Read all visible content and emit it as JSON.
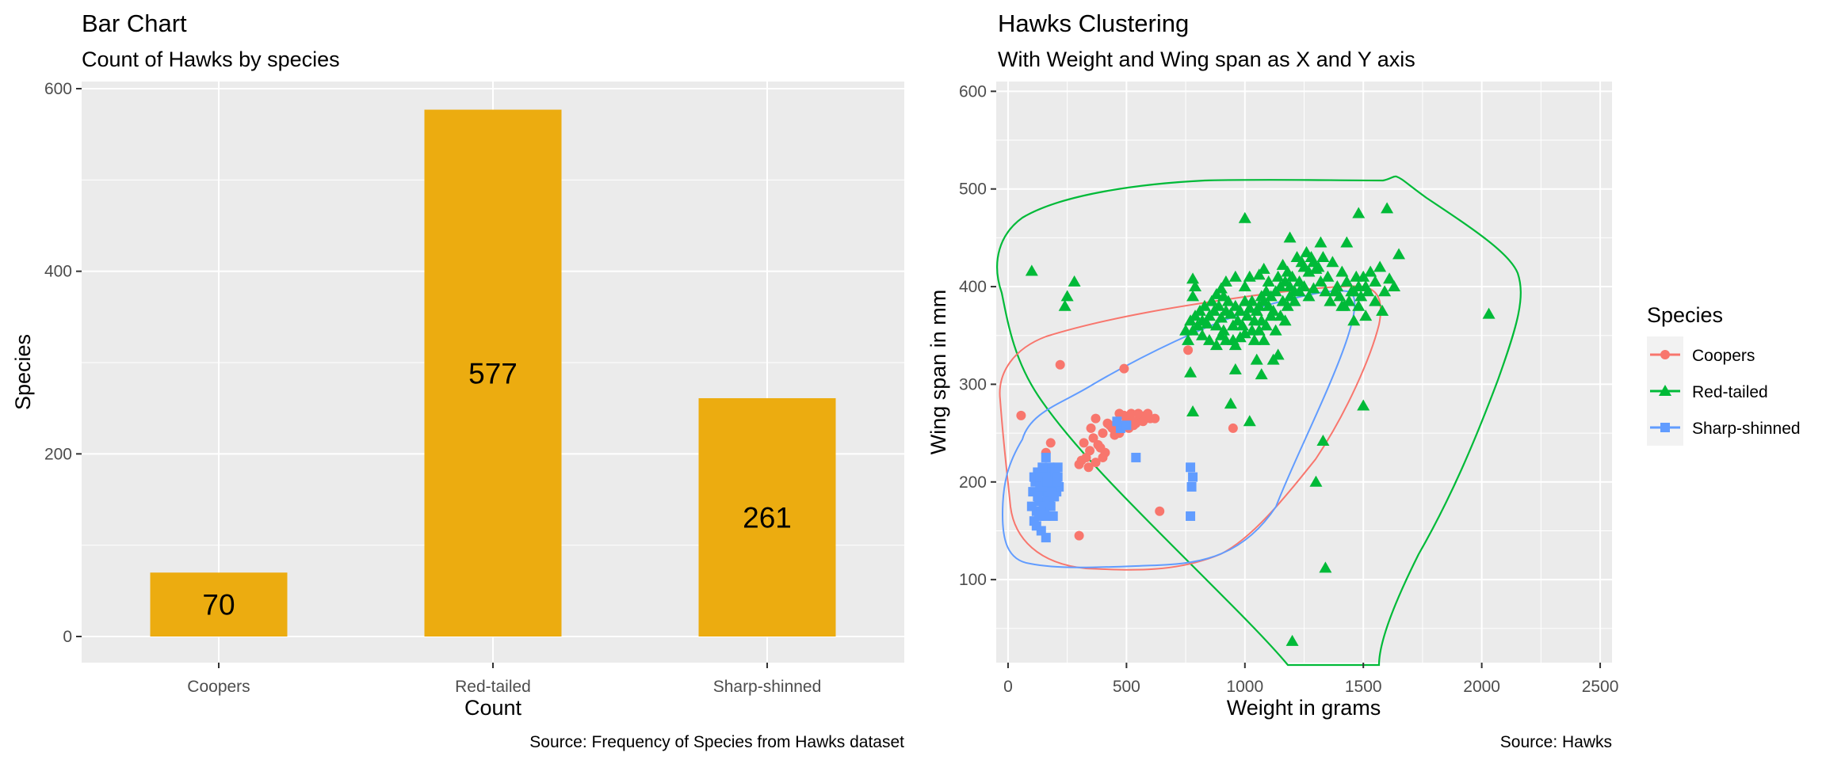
{
  "chart_data": [
    {
      "type": "bar",
      "title": "Bar Chart",
      "subtitle": "Count of Hawks by species",
      "xlabel": "Count",
      "ylabel": "Species",
      "caption": "Source: Frequency of Species from Hawks dataset",
      "categories": [
        "Coopers",
        "Red-tailed",
        "Sharp-shinned"
      ],
      "values": [
        70,
        577,
        261
      ],
      "data_labels": [
        "70",
        "577",
        "261"
      ],
      "ylim": [
        0,
        600
      ],
      "yticks": [
        0,
        200,
        400,
        600
      ],
      "grid": true,
      "bar_color": "#ECAC10",
      "panel_color": "#EBEBEB"
    },
    {
      "type": "scatter",
      "title": "Hawks Clustering",
      "subtitle": "With Weight and Wing span as X and Y axis",
      "xlabel": "Weight in grams",
      "ylabel": "Wing span in mm",
      "caption": "Source: Hawks",
      "xlim": [
        -50,
        2550
      ],
      "ylim": [
        15,
        610
      ],
      "xticks": [
        0,
        500,
        1000,
        1500,
        2000,
        2500
      ],
      "yticks": [
        100,
        200,
        300,
        400,
        500,
        600
      ],
      "grid": true,
      "panel_color": "#EBEBEB",
      "legend": {
        "title": "Species",
        "position": "right"
      },
      "series": [
        {
          "name": "Coopers",
          "color": "#F8766D",
          "marker": "circle",
          "points": [
            [
              55,
              268
            ],
            [
              220,
              320
            ],
            [
              490,
              316
            ],
            [
              760,
              335
            ],
            [
              160,
              230
            ],
            [
              300,
              145
            ],
            [
              640,
              170
            ],
            [
              950,
              255
            ],
            [
              180,
              240
            ],
            [
              330,
              225
            ],
            [
              345,
              232
            ],
            [
              360,
              245
            ],
            [
              380,
              238
            ],
            [
              400,
              250
            ],
            [
              420,
              260
            ],
            [
              440,
              255
            ],
            [
              460,
              262
            ],
            [
              480,
              258
            ],
            [
              500,
              265
            ],
            [
              520,
              270
            ],
            [
              540,
              260
            ],
            [
              560,
              265
            ],
            [
              580,
              268
            ],
            [
              600,
              265
            ],
            [
              350,
              255
            ],
            [
              370,
              265
            ],
            [
              390,
              235
            ],
            [
              410,
              230
            ],
            [
              320,
              240
            ],
            [
              310,
              222
            ],
            [
              300,
              218
            ],
            [
              340,
              215
            ],
            [
              370,
              220
            ],
            [
              400,
              225
            ],
            [
              430,
              258
            ],
            [
              450,
              248
            ],
            [
              470,
              250
            ],
            [
              510,
              255
            ],
            [
              530,
              262
            ],
            [
              550,
              270
            ],
            [
              470,
              270
            ],
            [
              490,
              268
            ],
            [
              510,
              260
            ],
            [
              530,
              258
            ],
            [
              570,
              262
            ],
            [
              590,
              270
            ],
            [
              620,
              265
            ]
          ]
        },
        {
          "name": "Red-tailed",
          "color": "#00BA38",
          "marker": "triangle",
          "points": [
            [
              100,
              416
            ],
            [
              240,
              380
            ],
            [
              250,
              390
            ],
            [
              280,
              405
            ],
            [
              1000,
              470
            ],
            [
              1200,
              37
            ],
            [
              1340,
              112
            ],
            [
              1300,
              200
            ],
            [
              1330,
              242
            ],
            [
              1500,
              278
            ],
            [
              2030,
              372
            ],
            [
              1600,
              480
            ],
            [
              1650,
              433
            ],
            [
              1480,
              475
            ],
            [
              1190,
              450
            ],
            [
              1320,
              445
            ],
            [
              1430,
              445
            ],
            [
              960,
              315
            ],
            [
              1050,
              325
            ],
            [
              770,
              312
            ],
            [
              780,
              272
            ],
            [
              940,
              280
            ],
            [
              1020,
              262
            ],
            [
              1070,
              310
            ],
            [
              1120,
              325
            ],
            [
              1140,
              330
            ],
            [
              1080,
              345
            ],
            [
              1170,
              365
            ],
            [
              1180,
              380
            ],
            [
              1120,
              375
            ],
            [
              1110,
              370
            ],
            [
              1130,
              355
            ],
            [
              1150,
              370
            ],
            [
              1160,
              385
            ],
            [
              1190,
              400
            ],
            [
              1200,
              410
            ],
            [
              1210,
              395
            ],
            [
              1230,
              405
            ],
            [
              1250,
              420
            ],
            [
              1270,
              415
            ],
            [
              1290,
              425
            ],
            [
              1310,
              420
            ],
            [
              1330,
              430
            ],
            [
              1350,
              410
            ],
            [
              1370,
              425
            ],
            [
              1390,
              400
            ],
            [
              1410,
              415
            ],
            [
              1430,
              405
            ],
            [
              1450,
              395
            ],
            [
              1470,
              410
            ],
            [
              1490,
              390
            ],
            [
              1510,
              400
            ],
            [
              1530,
              415
            ],
            [
              1550,
              405
            ],
            [
              1570,
              420
            ],
            [
              1590,
              395
            ],
            [
              1610,
              408
            ],
            [
              1630,
              400
            ],
            [
              1410,
              380
            ],
            [
              1460,
              365
            ],
            [
              1480,
              380
            ],
            [
              1510,
              370
            ],
            [
              1550,
              385
            ],
            [
              1580,
              375
            ],
            [
              1000,
              385
            ],
            [
              1010,
              370
            ],
            [
              1020,
              378
            ],
            [
              1030,
              385
            ],
            [
              1040,
              365
            ],
            [
              1050,
              375
            ],
            [
              1060,
              380
            ],
            [
              1070,
              390
            ],
            [
              1080,
              385
            ],
            [
              1090,
              395
            ],
            [
              1100,
              380
            ],
            [
              980,
              375
            ],
            [
              970,
              365
            ],
            [
              960,
              380
            ],
            [
              950,
              360
            ],
            [
              940,
              372
            ],
            [
              930,
              385
            ],
            [
              920,
              375
            ],
            [
              910,
              390
            ],
            [
              900,
              368
            ],
            [
              890,
              380
            ],
            [
              880,
              360
            ],
            [
              870,
              375
            ],
            [
              860,
              385
            ],
            [
              850,
              370
            ],
            [
              840,
              362
            ],
            [
              830,
              380
            ],
            [
              820,
              365
            ],
            [
              810,
              375
            ],
            [
              800,
              360
            ],
            [
              790,
              370
            ],
            [
              780,
              355
            ],
            [
              770,
              365
            ],
            [
              780,
              390
            ],
            [
              790,
              400
            ],
            [
              780,
              408
            ],
            [
              880,
              392
            ],
            [
              900,
              398
            ],
            [
              920,
              405
            ],
            [
              960,
              410
            ],
            [
              1000,
              400
            ],
            [
              1020,
              410
            ],
            [
              1060,
              412
            ],
            [
              1080,
              418
            ],
            [
              1100,
              405
            ],
            [
              1140,
              410
            ],
            [
              1160,
              422
            ],
            [
              1180,
              415
            ],
            [
              1220,
              430
            ],
            [
              1240,
              425
            ],
            [
              1260,
              435
            ],
            [
              1280,
              430
            ],
            [
              1300,
              418
            ],
            [
              1320,
              405
            ],
            [
              1340,
              395
            ],
            [
              1360,
              385
            ],
            [
              1380,
              395
            ],
            [
              1400,
              390
            ],
            [
              1420,
              380
            ],
            [
              1440,
              385
            ],
            [
              1460,
              395
            ],
            [
              1480,
              400
            ],
            [
              1500,
              410
            ],
            [
              1520,
              395
            ],
            [
              900,
              350
            ],
            [
              920,
              345
            ],
            [
              960,
              340
            ],
            [
              980,
              348
            ],
            [
              1000,
              352
            ],
            [
              1040,
              345
            ],
            [
              1060,
              355
            ],
            [
              1090,
              360
            ],
            [
              750,
              355
            ],
            [
              760,
              345
            ],
            [
              820,
              350
            ],
            [
              850,
              345
            ],
            [
              880,
              340
            ],
            [
              910,
              355
            ],
            [
              950,
              345
            ],
            [
              990,
              360
            ],
            [
              1030,
              355
            ],
            [
              1070,
              365
            ],
            [
              1110,
              390
            ],
            [
              1130,
              395
            ],
            [
              1150,
              400
            ],
            [
              1170,
              405
            ],
            [
              1190,
              390
            ],
            [
              1210,
              385
            ],
            [
              1230,
              395
            ],
            [
              1250,
              400
            ],
            [
              1270,
              390
            ],
            [
              1290,
              398
            ]
          ]
        },
        {
          "name": "Sharp-shinned",
          "color": "#619CFF",
          "marker": "square",
          "points": [
            [
              110,
              160
            ],
            [
              120,
              170
            ],
            [
              130,
              180
            ],
            [
              140,
              190
            ],
            [
              150,
              200
            ],
            [
              160,
              210
            ],
            [
              170,
              205
            ],
            [
              180,
              195
            ],
            [
              190,
              185
            ],
            [
              200,
              200
            ],
            [
              210,
              215
            ],
            [
              100,
              175
            ],
            [
              105,
              190
            ],
            [
              115,
              200
            ],
            [
              125,
              210
            ],
            [
              135,
              195
            ],
            [
              145,
              180
            ],
            [
              155,
              170
            ],
            [
              165,
              185
            ],
            [
              175,
              215
            ],
            [
              185,
              210
            ],
            [
              195,
              205
            ],
            [
              205,
              190
            ],
            [
              215,
              195
            ],
            [
              120,
              155
            ],
            [
              130,
              165
            ],
            [
              140,
              150
            ],
            [
              150,
              175
            ],
            [
              160,
              165
            ],
            [
              170,
              190
            ],
            [
              180,
              175
            ],
            [
              190,
              200
            ],
            [
              200,
              210
            ],
            [
              210,
              205
            ],
            [
              110,
              205
            ],
            [
              125,
              185
            ],
            [
              135,
              205
            ],
            [
              145,
              215
            ],
            [
              155,
              195
            ],
            [
              165,
              200
            ],
            [
              175,
              180
            ],
            [
              185,
              190
            ],
            [
              195,
              185
            ],
            [
              205,
              200
            ],
            [
              160,
              143
            ],
            [
              190,
              165
            ],
            [
              160,
              225
            ],
            [
              475,
              255
            ],
            [
              770,
              165
            ],
            [
              775,
              195
            ],
            [
              780,
              205
            ],
            [
              770,
              215
            ],
            [
              460,
              262
            ],
            [
              500,
              258
            ],
            [
              540,
              225
            ]
          ]
        }
      ]
    }
  ]
}
